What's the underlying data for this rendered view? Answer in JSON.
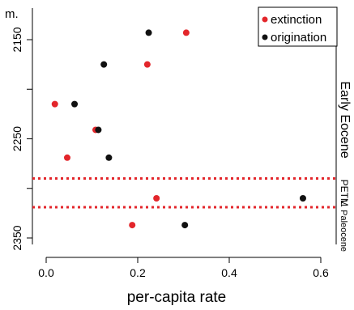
{
  "chart_data": {
    "type": "scatter",
    "title": "",
    "xlabel": "per-capita rate",
    "ylabel": "m.",
    "xlim": [
      -0.05,
      0.65
    ],
    "ylim": [
      2125,
      2360
    ],
    "y_reversed": true,
    "xticks": [
      "0.0",
      "0.2",
      "0.4",
      "0.6"
    ],
    "xtick_values": [
      0.0,
      0.2,
      0.4,
      0.6
    ],
    "yticks": [
      "2150",
      "2200",
      "2250",
      "2300",
      "2350"
    ],
    "ytick_values": [
      2150,
      2200,
      2250,
      2300,
      2350
    ],
    "ytick_labels_shown": [
      "2150",
      "2250",
      "2350"
    ],
    "grid": false,
    "legend_position": "top-right",
    "series": [
      {
        "name": "extinction",
        "color": "#e3262b",
        "points": [
          {
            "x": 0.306,
            "y": 2143
          },
          {
            "x": 0.221,
            "y": 2175
          },
          {
            "x": 0.019,
            "y": 2215
          },
          {
            "x": 0.108,
            "y": 2241
          },
          {
            "x": 0.046,
            "y": 2269
          },
          {
            "x": 0.241,
            "y": 2310
          },
          {
            "x": 0.188,
            "y": 2337
          }
        ]
      },
      {
        "name": "origination",
        "color": "#111111",
        "points": [
          {
            "x": 0.224,
            "y": 2143
          },
          {
            "x": 0.126,
            "y": 2175
          },
          {
            "x": 0.062,
            "y": 2215
          },
          {
            "x": 0.114,
            "y": 2241
          },
          {
            "x": 0.137,
            "y": 2269
          },
          {
            "x": 0.561,
            "y": 2310
          },
          {
            "x": 0.303,
            "y": 2337
          }
        ]
      }
    ],
    "boundaries": [
      {
        "y": 2290,
        "color": "#e3262b",
        "style": "dotted"
      },
      {
        "y": 2319,
        "color": "#e3262b",
        "style": "dotted"
      }
    ],
    "interval_labels": [
      {
        "label": "Early Eocene",
        "y_from": 2125,
        "y_to": 2290
      },
      {
        "label": "PETM",
        "y_from": 2290,
        "y_to": 2319
      },
      {
        "label": "L. Paleocene",
        "y_from": 2319,
        "y_to": 2360
      }
    ]
  }
}
